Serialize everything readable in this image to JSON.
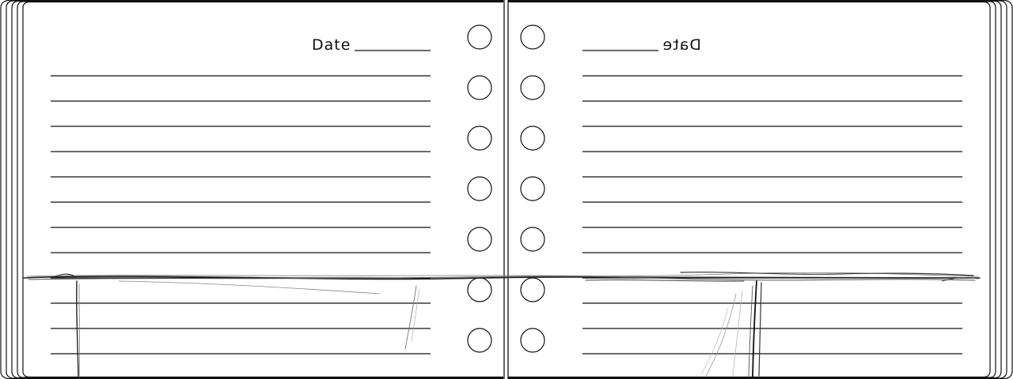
{
  "left_page": {
    "date_label": "Date"
  },
  "right_page": {
    "date_label": "Date"
  },
  "colors": {
    "paper": "#ffffff",
    "ink": "#111111",
    "sketch": "#6e6e6e"
  }
}
